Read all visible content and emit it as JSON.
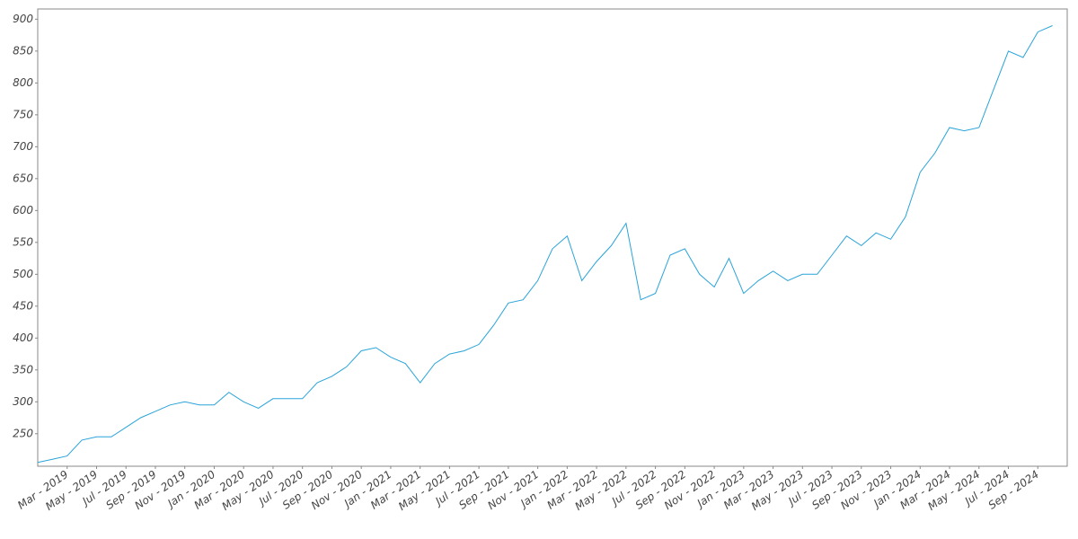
{
  "chart_data": {
    "type": "line",
    "x": [
      "2019-01",
      "2019-02",
      "2019-03",
      "2019-04",
      "2019-05",
      "2019-06",
      "2019-07",
      "2019-08",
      "2019-09",
      "2019-10",
      "2019-11",
      "2019-12",
      "2020-01",
      "2020-02",
      "2020-03",
      "2020-04",
      "2020-05",
      "2020-06",
      "2020-07",
      "2020-08",
      "2020-09",
      "2020-10",
      "2020-11",
      "2020-12",
      "2021-01",
      "2021-02",
      "2021-03",
      "2021-04",
      "2021-05",
      "2021-06",
      "2021-07",
      "2021-08",
      "2021-09",
      "2021-10",
      "2021-11",
      "2021-12",
      "2022-01",
      "2022-02",
      "2022-03",
      "2022-04",
      "2022-05",
      "2022-06",
      "2022-07",
      "2022-08",
      "2022-09",
      "2022-10",
      "2022-11",
      "2022-12",
      "2023-01",
      "2023-02",
      "2023-03",
      "2023-04",
      "2023-05",
      "2023-06",
      "2023-07",
      "2023-08",
      "2023-09",
      "2023-10",
      "2023-11",
      "2023-12",
      "2024-01",
      "2024-02",
      "2024-03",
      "2024-04",
      "2024-05",
      "2024-06",
      "2024-07",
      "2024-08",
      "2024-09",
      "2024-10"
    ],
    "series": [
      {
        "color": "#29a3d9",
        "values": [
          205,
          210,
          215,
          240,
          245,
          245,
          260,
          275,
          285,
          295,
          300,
          295,
          295,
          315,
          300,
          290,
          305,
          305,
          305,
          330,
          340,
          355,
          380,
          385,
          370,
          360,
          330,
          360,
          375,
          380,
          390,
          420,
          455,
          460,
          490,
          540,
          560,
          490,
          520,
          545,
          580,
          460,
          470,
          530,
          540,
          500,
          480,
          525,
          470,
          490,
          505,
          490,
          500,
          500,
          530,
          560,
          545,
          565,
          555,
          590,
          660,
          690,
          730,
          725,
          730,
          790,
          850,
          840,
          880,
          890
        ]
      }
    ],
    "xlim": [
      "2019-01",
      "2024-11"
    ],
    "xticks": [
      {
        "value": "2019-03",
        "label": "Mar - 2019"
      },
      {
        "value": "2019-05",
        "label": "May - 2019"
      },
      {
        "value": "2019-07",
        "label": "Jul - 2019"
      },
      {
        "value": "2019-09",
        "label": "Sep - 2019"
      },
      {
        "value": "2019-11",
        "label": "Nov - 2019"
      },
      {
        "value": "2020-01",
        "label": "Jan - 2020"
      },
      {
        "value": "2020-03",
        "label": "Mar - 2020"
      },
      {
        "value": "2020-05",
        "label": "May - 2020"
      },
      {
        "value": "2020-07",
        "label": "Jul - 2020"
      },
      {
        "value": "2020-09",
        "label": "Sep - 2020"
      },
      {
        "value": "2020-11",
        "label": "Nov - 2020"
      },
      {
        "value": "2021-01",
        "label": "Jan - 2021"
      },
      {
        "value": "2021-03",
        "label": "Mar - 2021"
      },
      {
        "value": "2021-05",
        "label": "May - 2021"
      },
      {
        "value": "2021-07",
        "label": "Jul - 2021"
      },
      {
        "value": "2021-09",
        "label": "Sep - 2021"
      },
      {
        "value": "2021-11",
        "label": "Nov - 2021"
      },
      {
        "value": "2022-01",
        "label": "Jan - 2022"
      },
      {
        "value": "2022-03",
        "label": "Mar - 2022"
      },
      {
        "value": "2022-05",
        "label": "May - 2022"
      },
      {
        "value": "2022-07",
        "label": "Jul - 2022"
      },
      {
        "value": "2022-09",
        "label": "Sep - 2022"
      },
      {
        "value": "2022-11",
        "label": "Nov - 2022"
      },
      {
        "value": "2023-01",
        "label": "Jan - 2023"
      },
      {
        "value": "2023-03",
        "label": "Mar - 2023"
      },
      {
        "value": "2023-05",
        "label": "May - 2023"
      },
      {
        "value": "2023-07",
        "label": "Jul - 2023"
      },
      {
        "value": "2023-09",
        "label": "Sep - 2023"
      },
      {
        "value": "2023-11",
        "label": "Nov - 2023"
      },
      {
        "value": "2024-01",
        "label": "Jan - 2024"
      },
      {
        "value": "2024-03",
        "label": "Mar - 2024"
      },
      {
        "value": "2024-05",
        "label": "May - 2024"
      },
      {
        "value": "2024-07",
        "label": "Jul - 2024"
      },
      {
        "value": "2024-09",
        "label": "Sep - 2024"
      }
    ],
    "ylim": [
      199,
      916
    ],
    "yticks": [
      250,
      300,
      350,
      400,
      450,
      500,
      550,
      600,
      650,
      700,
      750,
      800,
      850,
      900
    ],
    "grid": false
  }
}
